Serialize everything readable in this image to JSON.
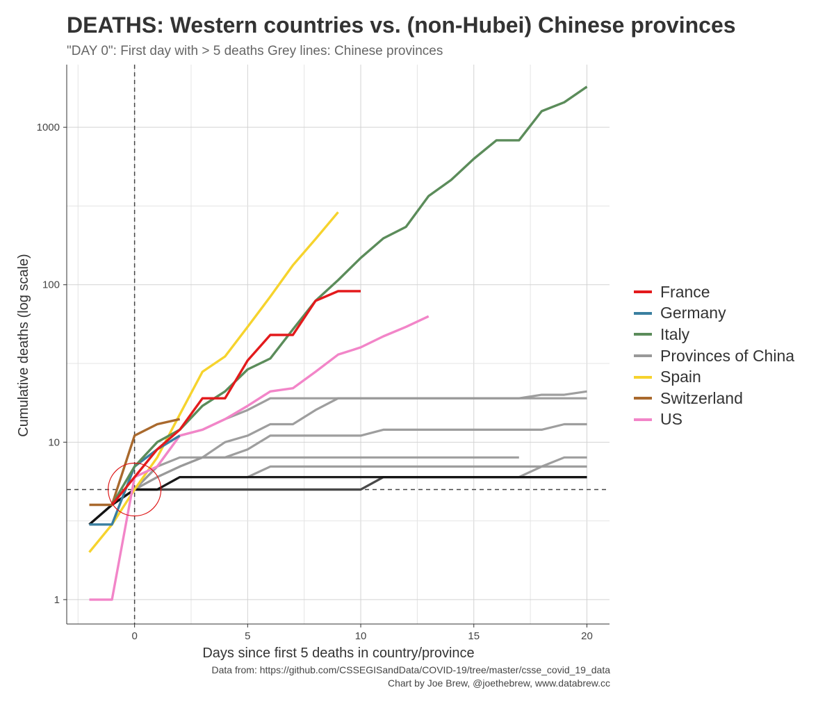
{
  "header": {
    "title": "DEATHS: Western countries vs. (non-Hubei) Chinese provinces",
    "subtitle": "\"DAY 0\": First day with > 5 deaths Grey lines: Chinese provinces"
  },
  "caption": {
    "line1": "Data from: https://github.com/CSSEGISandData/COVID-19/tree/master/csse_covid_19_data",
    "line2": "Chart by Joe Brew, @joethebrew, www.databrew.cc"
  },
  "chart_data": {
    "type": "line",
    "title": "DEATHS: Western countries vs. (non-Hubei) Chinese provinces",
    "xlabel": "Days since first 5 deaths in country/province",
    "ylabel": "Cumulative deaths (log scale)",
    "y_scale": "log10",
    "xlim": [
      -3,
      21
    ],
    "ylim": [
      0.7,
      2500
    ],
    "x_ticks": [
      0,
      5,
      10,
      15,
      20
    ],
    "x_tick_labels": [
      "0",
      "5",
      "10",
      "15",
      "20"
    ],
    "y_ticks": [
      1,
      10,
      100,
      1000
    ],
    "y_tick_labels": [
      "1",
      "10",
      "100",
      "1000"
    ],
    "reference_lines": [
      {
        "type": "vertical",
        "x": 0,
        "style": "dashed"
      },
      {
        "type": "horizontal",
        "y": 5,
        "style": "dashed"
      }
    ],
    "annotation": {
      "type": "circle",
      "x": 0,
      "y": 5,
      "color": "#dd1111"
    },
    "legend_position": "right",
    "series": [
      {
        "name": "France",
        "color": "#e31a1c",
        "x": [
          -1,
          0,
          1,
          2,
          3,
          4,
          5,
          6,
          7,
          8,
          9,
          10
        ],
        "values": [
          4,
          6,
          9,
          12,
          19,
          19,
          33,
          48,
          48,
          79,
          91,
          91
        ]
      },
      {
        "name": "Germany",
        "color": "#3a7fa0",
        "x": [
          -2,
          -1,
          0,
          1,
          2
        ],
        "values": [
          3,
          3,
          7,
          9,
          11
        ]
      },
      {
        "name": "Italy",
        "color": "#5b8c5a",
        "x": [
          -1,
          0,
          1,
          2,
          3,
          4,
          5,
          6,
          7,
          8,
          9,
          10,
          11,
          12,
          13,
          14,
          15,
          16,
          17,
          18,
          19,
          20
        ],
        "values": [
          4,
          7,
          10,
          12,
          17,
          21,
          29,
          34,
          52,
          79,
          107,
          148,
          197,
          233,
          366,
          463,
          631,
          827,
          827,
          1266,
          1441,
          1809
        ]
      },
      {
        "name": "Provinces of China",
        "color": "#999999",
        "x": [],
        "values": []
      },
      {
        "name": "Spain",
        "color": "#f6d32d",
        "x": [
          -2,
          -1,
          0,
          1,
          2,
          3,
          4,
          5,
          6,
          7,
          8,
          9
        ],
        "values": [
          2,
          3,
          5,
          8,
          15,
          28,
          35,
          54,
          84,
          133,
          195,
          289
        ]
      },
      {
        "name": "Switzerland",
        "color": "#a9692d",
        "x": [
          -2,
          -1,
          0,
          1,
          2
        ],
        "values": [
          4,
          4,
          11,
          13,
          14
        ]
      },
      {
        "name": "US",
        "color": "#f285c8",
        "x": [
          -2,
          -1,
          0,
          1,
          2,
          3,
          4,
          5,
          6,
          7,
          8,
          9,
          10,
          11,
          12,
          13
        ],
        "values": [
          1,
          1,
          6,
          7,
          11,
          12,
          14,
          17,
          21,
          22,
          28,
          36,
          40,
          47,
          54,
          63
        ]
      }
    ],
    "china_provinces": [
      {
        "color": "#999999",
        "x": [
          -2,
          -1,
          0,
          1,
          2,
          3,
          4,
          5,
          6,
          7,
          8,
          9,
          10,
          11,
          12,
          13,
          14,
          15,
          16,
          17,
          18,
          19,
          20
        ],
        "values": [
          3,
          4,
          5,
          7,
          11,
          12,
          14,
          16,
          19,
          19,
          19,
          19,
          19,
          19,
          19,
          19,
          19,
          19,
          19,
          19,
          20,
          20,
          21
        ]
      },
      {
        "color": "#999999",
        "x": [
          -2,
          -1,
          0,
          1,
          2,
          3,
          4,
          5,
          6,
          7,
          8,
          9,
          10,
          11,
          12,
          13,
          14,
          15,
          16,
          17,
          18,
          19,
          20
        ],
        "values": [
          3,
          4,
          5,
          6,
          7,
          8,
          10,
          11,
          13,
          13,
          16,
          19,
          19,
          19,
          19,
          19,
          19,
          19,
          19,
          19,
          19,
          19,
          19
        ]
      },
      {
        "color": "#999999",
        "x": [
          -2,
          -1,
          0,
          1,
          2,
          3,
          4,
          5,
          6,
          7,
          8,
          9,
          10,
          11,
          12,
          13,
          14,
          15,
          16,
          17,
          18,
          19,
          20
        ],
        "values": [
          3,
          4,
          5,
          6,
          7,
          8,
          8,
          9,
          11,
          11,
          11,
          11,
          11,
          12,
          12,
          12,
          12,
          12,
          12,
          12,
          12,
          13,
          13
        ]
      },
      {
        "color": "#999999",
        "x": [
          -2,
          -1,
          0,
          1,
          2,
          3,
          4,
          5,
          6,
          7,
          8,
          9,
          10,
          11,
          12,
          13,
          14,
          15,
          16,
          17
        ],
        "values": [
          3,
          4,
          5,
          7,
          8,
          8,
          8,
          8,
          8,
          8,
          8,
          8,
          8,
          8,
          8,
          8,
          8,
          8,
          8,
          8
        ]
      },
      {
        "color": "#999999",
        "x": [
          -2,
          -1,
          0,
          1,
          2,
          3,
          4,
          5,
          6,
          7,
          8,
          9,
          10,
          11,
          12,
          13,
          14,
          15,
          16,
          17,
          18,
          19,
          20
        ],
        "values": [
          3,
          4,
          5,
          5,
          5,
          5,
          5,
          5,
          5,
          5,
          5,
          5,
          5,
          6,
          6,
          6,
          6,
          6,
          6,
          6,
          7,
          8,
          8
        ]
      },
      {
        "color": "#999999",
        "x": [
          -2,
          -1,
          0,
          1,
          2,
          3,
          4,
          5,
          6,
          7,
          8,
          9,
          10,
          11,
          12,
          13,
          14,
          15,
          16,
          17,
          18,
          19,
          20
        ],
        "values": [
          3,
          4,
          5,
          5,
          6,
          6,
          6,
          6,
          7,
          7,
          7,
          7,
          7,
          7,
          7,
          7,
          7,
          7,
          7,
          7,
          7,
          7,
          7
        ]
      },
      {
        "color": "#999999",
        "x": [
          -2,
          -1,
          0,
          1,
          2,
          3,
          4,
          5,
          6,
          7,
          8,
          9,
          10,
          11,
          12,
          13,
          14,
          15,
          16,
          17,
          18,
          19,
          20
        ],
        "values": [
          3,
          4,
          5,
          5,
          5,
          5,
          5,
          5,
          5,
          5,
          5,
          5,
          5,
          6,
          6,
          6,
          6,
          6,
          6,
          6,
          6,
          6,
          6
        ]
      },
      {
        "color": "#444444",
        "x": [
          -2,
          -1,
          0,
          1,
          2,
          3,
          4,
          5,
          6,
          7,
          8,
          9,
          10,
          11,
          12,
          13,
          14,
          15,
          16,
          17,
          18,
          19,
          20
        ],
        "values": [
          3,
          4,
          5,
          5,
          5,
          5,
          5,
          5,
          5,
          5,
          5,
          5,
          5,
          6,
          6,
          6,
          6,
          6,
          6,
          6,
          6,
          6,
          6
        ]
      },
      {
        "color": "#111111",
        "x": [
          -2,
          -1,
          0,
          1,
          2,
          3,
          4,
          5,
          6,
          7,
          8,
          9,
          10,
          11,
          12,
          13,
          14,
          15,
          16,
          17,
          18,
          19,
          20
        ],
        "values": [
          3,
          4,
          5,
          5,
          6,
          6,
          6,
          6,
          6,
          6,
          6,
          6,
          6,
          6,
          6,
          6,
          6,
          6,
          6,
          6,
          6,
          6,
          6
        ]
      }
    ]
  }
}
